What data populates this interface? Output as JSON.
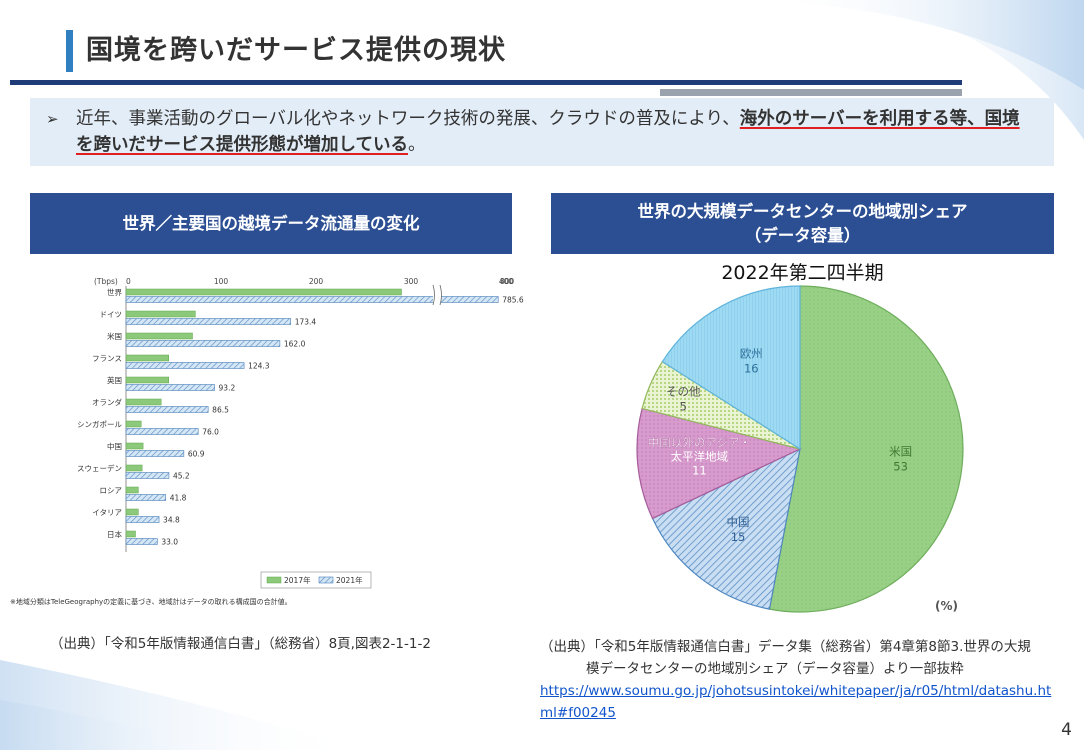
{
  "page": {
    "title": "国境を跨いだサービス提供の現状",
    "lead_bullet": "➢",
    "lead_text_1": "近年、事業活動のグローバル化やネットワーク技術の発展、クラウドの普及により、",
    "lead_text_bold": "海外のサーバーを利用する等、国境を跨いだサービス提供形態が増加している",
    "lead_text_end": "。",
    "page_number": "4"
  },
  "left_panel": {
    "heading": "世界／主要国の越境データ流通量の変化",
    "footnote": "※地域分類はTeleGeographyの定義に基づき、地域計はデータの取れる構成国の合計値。",
    "source": "（出典）「令和5年版情報通信白書」（総務省）8頁,図表2-1-1-2"
  },
  "right_panel": {
    "heading_line1": "世界の大規模データセンターの地域別シェア",
    "heading_line2": "（データ容量）",
    "subtitle": "2022年第二四半期",
    "source_line1": "（出典）「令和5年版情報通信白書」データ集（総務省）第4章第8節3.世界の大規",
    "source_line2": "模データセンターの地域別シェア（データ容量）より一部抜粋",
    "source_url": "https://www.soumu.go.jp/johotsusintokei/whitepaper/ja/r05/html/datashu.html#f00245"
  },
  "chart_data": [
    {
      "type": "bar",
      "orientation": "horizontal",
      "unit_label": "(Tbps)",
      "xlim": [
        0,
        800
      ],
      "x_ticks": [
        "0",
        "100",
        "200",
        "300",
        "400",
        "800"
      ],
      "categories": [
        "世界",
        "ドイツ",
        "米国",
        "フランス",
        "英国",
        "オランダ",
        "シンガポール",
        "中国",
        "スウェーデン",
        "ロシア",
        "イタリア",
        "日本"
      ],
      "series": [
        {
          "name": "2017年",
          "values": [
            290,
            73,
            70,
            45,
            45,
            37,
            16,
            18,
            17,
            13,
            13,
            10
          ],
          "color": "#8dc97a"
        },
        {
          "name": "2021年",
          "values": [
            785.6,
            173.4,
            162.0,
            124.3,
            93.2,
            86.5,
            76.0,
            60.9,
            45.2,
            41.8,
            34.8,
            33.0
          ],
          "labels": [
            "785.6",
            "173.4",
            "162.0",
            "124.3",
            "93.2",
            "86.5",
            "76.0",
            "60.9",
            "45.2",
            "41.8",
            "34.8",
            "33.0"
          ],
          "color": "#8fbbe3"
        }
      ],
      "axis_break": true
    },
    {
      "type": "pie",
      "unit_label": "(%)",
      "slices": [
        {
          "label": "米国",
          "value": 53,
          "color": "#92cd80"
        },
        {
          "label": "中国",
          "value": 15,
          "color": "#a9cbe8"
        },
        {
          "label": "中国以外のアジア・太平洋地域",
          "label_line1": "中国以外のアジア・",
          "label_line2": "太平洋地域",
          "value": 11,
          "color": "#cf8fc5"
        },
        {
          "label": "その他",
          "value": 5,
          "color": "#cfe6a8"
        },
        {
          "label": "欧州",
          "value": 16,
          "color": "#8fd3f0"
        }
      ]
    }
  ]
}
